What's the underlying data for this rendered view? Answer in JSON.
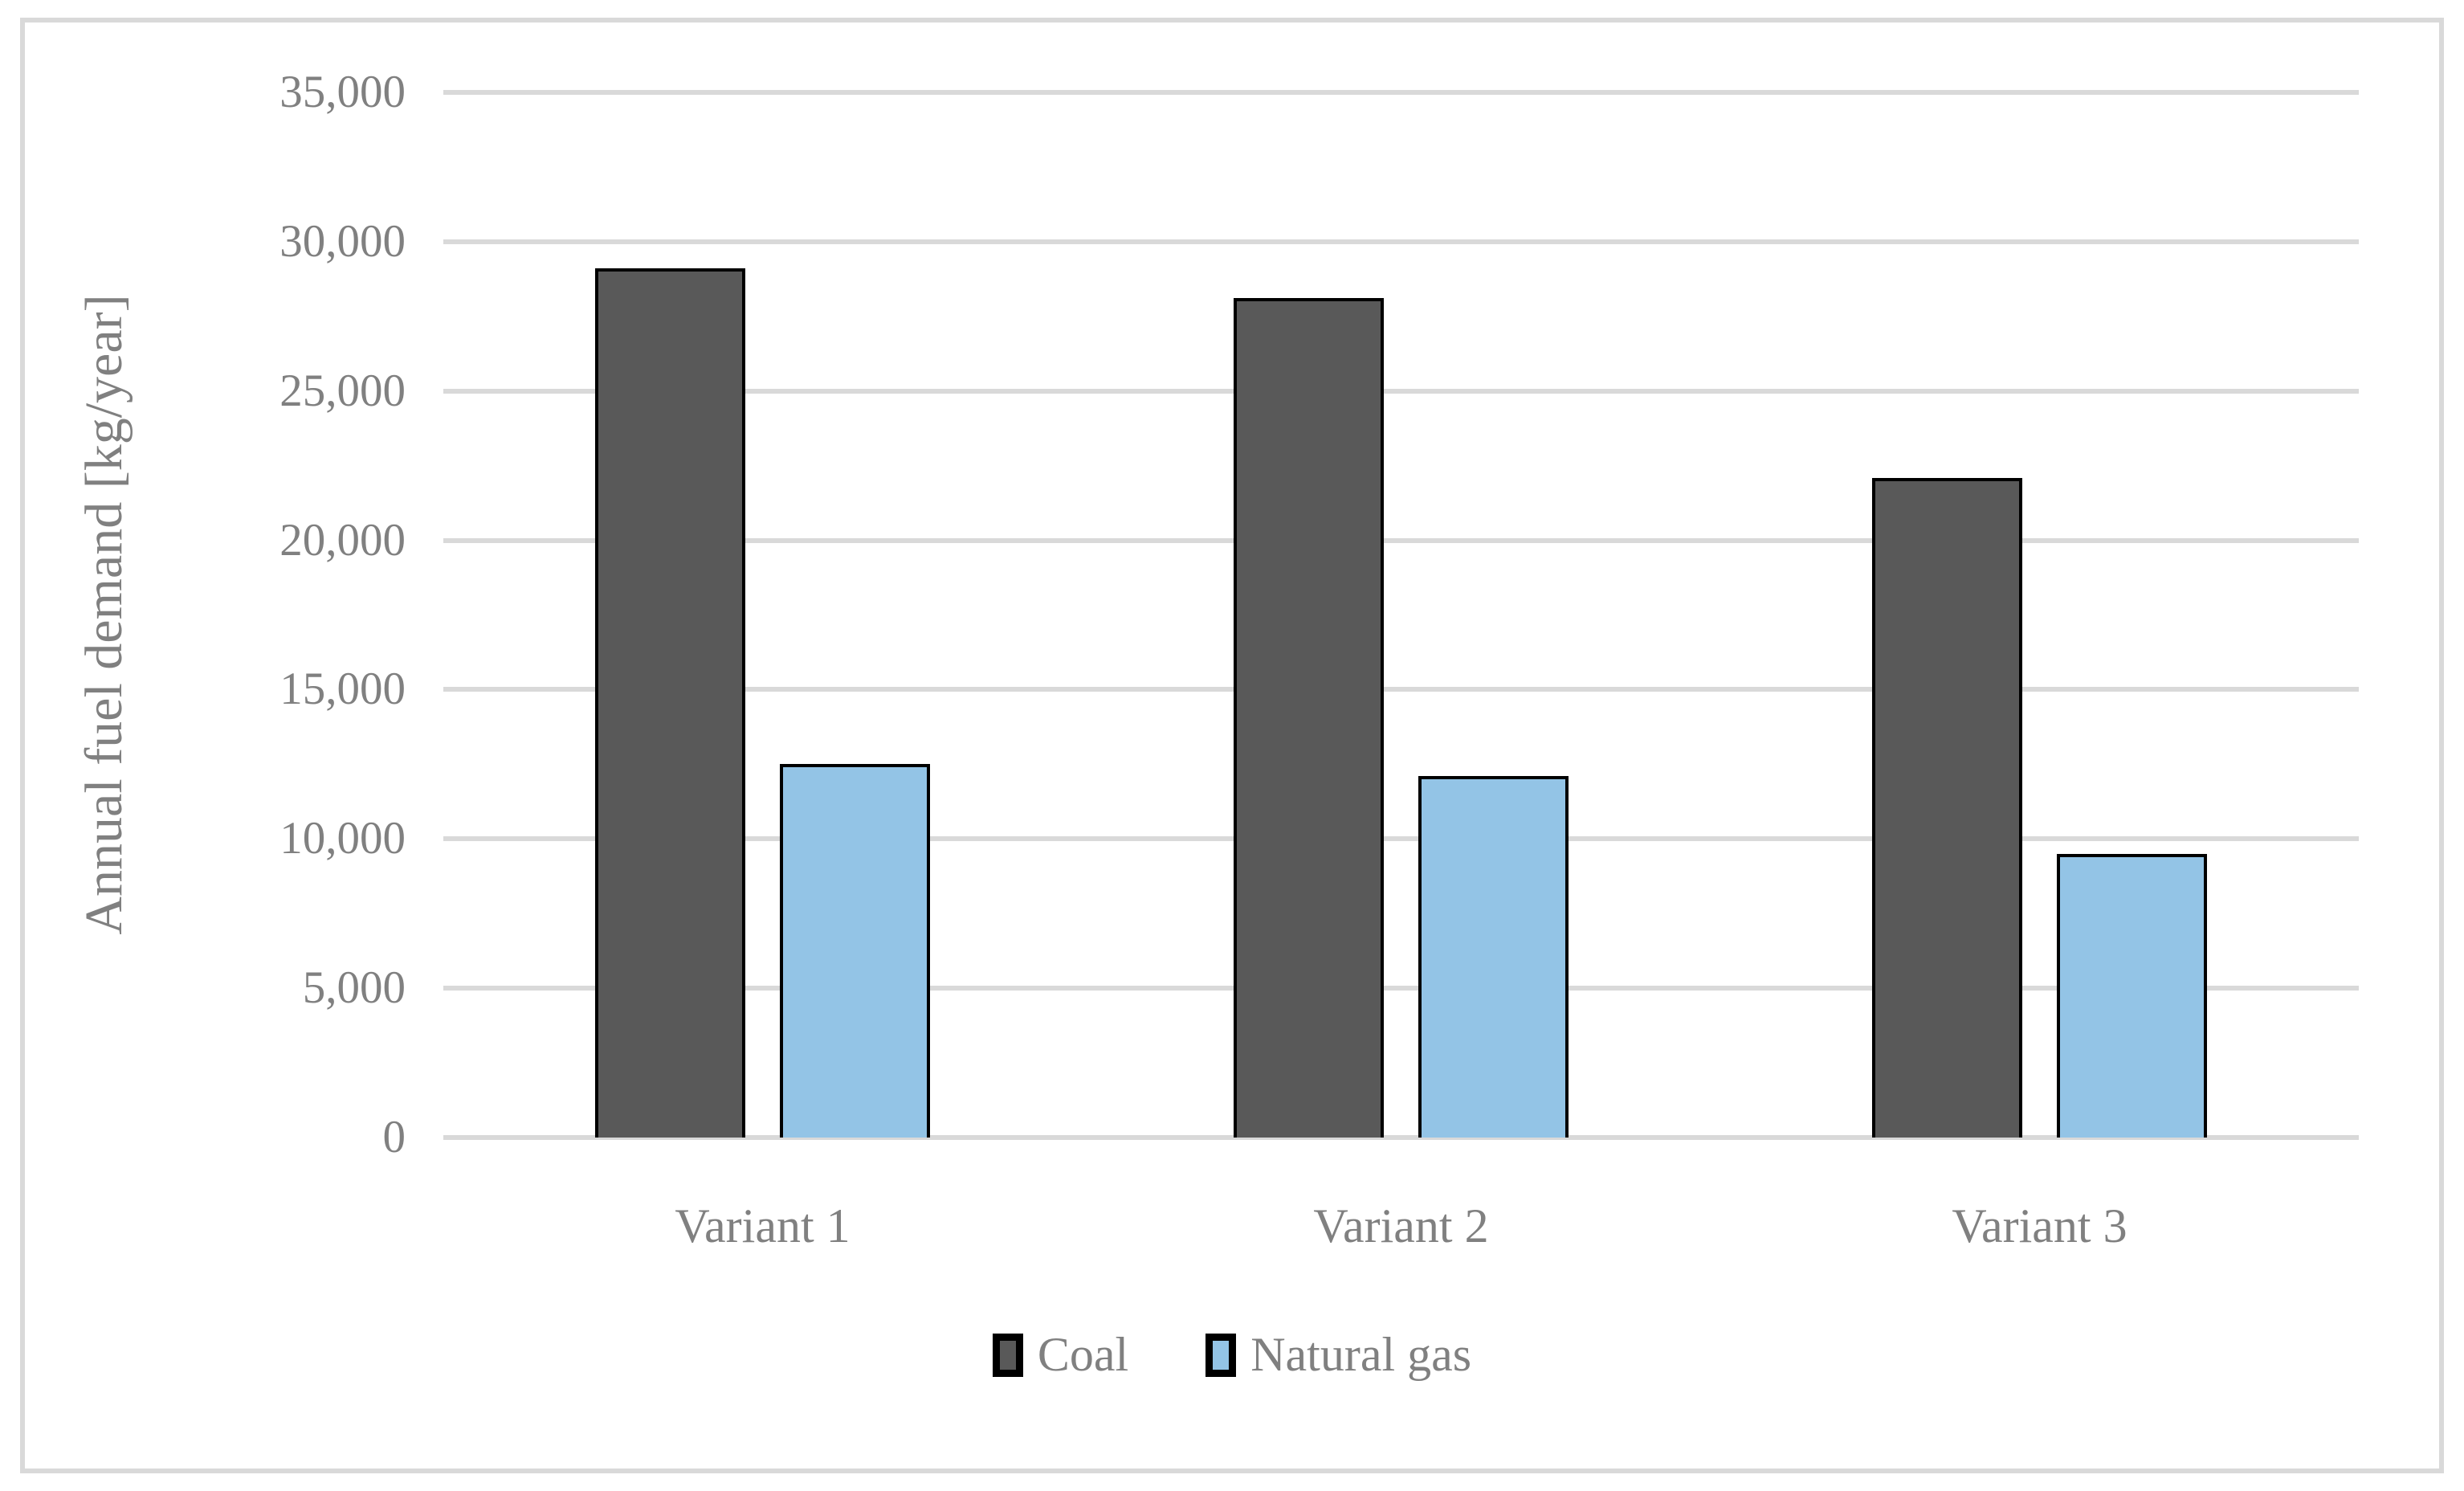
{
  "figure": {
    "background_color": "#FFFFFF",
    "frame_border_color": "#D9D9D9",
    "text_color": "#808080",
    "gridline_color": "#D9D9D9"
  },
  "chart_data": {
    "type": "bar",
    "title": "",
    "xlabel": "",
    "ylabel": "Annual fuel demand [kg/year]",
    "categories": [
      "Variant 1",
      "Variant 2",
      "Variant 3"
    ],
    "series": [
      {
        "name": "Coal",
        "values": [
          29100,
          28100,
          22100
        ],
        "fill": "#595959",
        "outline": "#000000"
      },
      {
        "name": "Natural gas",
        "values": [
          12500,
          12100,
          9500
        ],
        "fill": "#93C4E6",
        "outline": "#000000"
      }
    ],
    "ylim": [
      0,
      35000
    ],
    "ytick_step": 5000,
    "ytick_labels": [
      "0",
      "5,000",
      "10,000",
      "15,000",
      "20,000",
      "25,000",
      "30,000",
      "35,000"
    ],
    "grid": true,
    "legend_position": "bottom"
  }
}
